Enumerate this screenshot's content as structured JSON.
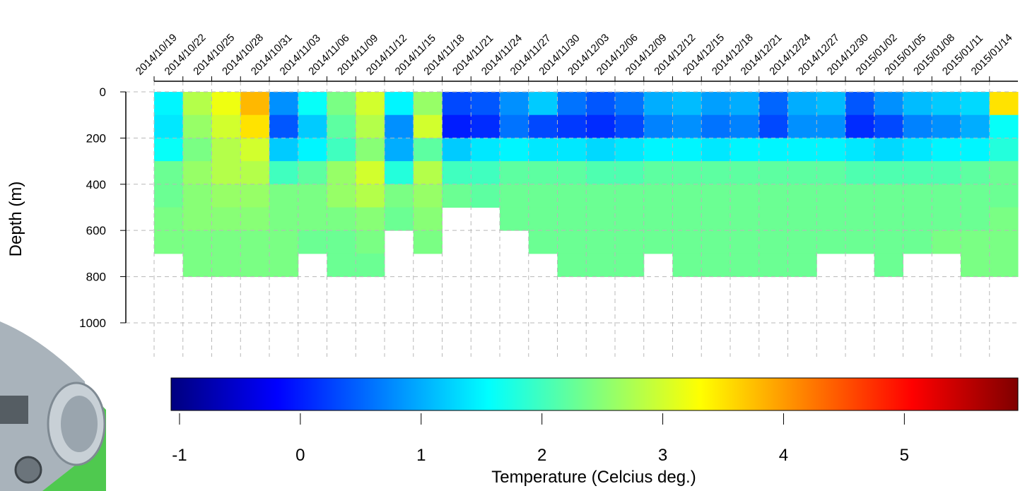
{
  "chart_data": {
    "type": "heatmap",
    "ylabel": "Depth (m)",
    "colorbar_label": "Temperature (Celcius deg.)",
    "x": [
      "2014/10/19",
      "2014/10/22",
      "2014/10/25",
      "2014/10/28",
      "2014/10/31",
      "2014/11/03",
      "2014/11/06",
      "2014/11/09",
      "2014/11/12",
      "2014/11/15",
      "2014/11/18",
      "2014/11/21",
      "2014/11/24",
      "2014/11/27",
      "2014/11/30",
      "2014/12/03",
      "2014/12/06",
      "2014/12/09",
      "2014/12/12",
      "2014/12/15",
      "2014/12/18",
      "2014/12/21",
      "2014/12/24",
      "2014/12/27",
      "2014/12/30",
      "2015/01/02",
      "2015/01/05",
      "2015/01/08",
      "2015/01/11",
      "2015/01/14"
    ],
    "y_edges": [
      0,
      100,
      200,
      300,
      400,
      500,
      600,
      700,
      800,
      900,
      1000,
      1100
    ],
    "z": [
      [
        1.5,
        1.4,
        1.6,
        2.3,
        2.3,
        2.4,
        2.4,
        null,
        null,
        null,
        null
      ],
      [
        2.8,
        2.6,
        2.4,
        2.6,
        2.5,
        2.5,
        2.4,
        2.4,
        null,
        null,
        null
      ],
      [
        3.2,
        3.0,
        2.8,
        2.8,
        2.6,
        2.5,
        2.4,
        2.4,
        null,
        null,
        null
      ],
      [
        3.8,
        3.5,
        3.0,
        2.8,
        2.6,
        2.5,
        2.4,
        2.4,
        null,
        null,
        null
      ],
      [
        0.8,
        0.4,
        1.2,
        2.0,
        2.4,
        2.4,
        2.4,
        2.4,
        null,
        null,
        null
      ],
      [
        1.6,
        1.2,
        1.5,
        2.2,
        2.4,
        2.4,
        2.3,
        null,
        null,
        null,
        null
      ],
      [
        2.4,
        2.2,
        2.0,
        2.6,
        2.6,
        2.4,
        2.3,
        2.3,
        null,
        null,
        null
      ],
      [
        3.0,
        2.8,
        2.5,
        3.0,
        2.8,
        2.5,
        2.4,
        2.3,
        null,
        null,
        null
      ],
      [
        1.5,
        0.8,
        1.0,
        1.8,
        2.4,
        2.3,
        null,
        null,
        null,
        null,
        null
      ],
      [
        2.6,
        3.0,
        2.2,
        2.8,
        2.6,
        2.5,
        2.4,
        null,
        null,
        null,
        null
      ],
      [
        0.3,
        0.0,
        1.2,
        2.0,
        2.3,
        null,
        null,
        null,
        null,
        null,
        null
      ],
      [
        0.4,
        0.1,
        1.4,
        2.0,
        2.2,
        null,
        null,
        null,
        null,
        null,
        null
      ],
      [
        0.8,
        0.6,
        1.5,
        2.2,
        2.3,
        2.3,
        null,
        null,
        null,
        null,
        null
      ],
      [
        1.2,
        0.3,
        1.4,
        2.2,
        2.3,
        2.3,
        2.3,
        null,
        null,
        null,
        null
      ],
      [
        0.6,
        0.2,
        1.4,
        2.2,
        2.3,
        2.3,
        2.3,
        2.3,
        null,
        null,
        null
      ],
      [
        0.4,
        0.1,
        1.3,
        2.1,
        2.3,
        2.3,
        2.3,
        2.3,
        null,
        null,
        null
      ],
      [
        0.6,
        0.3,
        1.4,
        2.1,
        2.3,
        2.3,
        2.3,
        2.3,
        null,
        null,
        null
      ],
      [
        1.0,
        0.7,
        1.5,
        2.2,
        2.3,
        2.3,
        2.3,
        null,
        null,
        null,
        null
      ],
      [
        1.1,
        0.8,
        1.5,
        2.2,
        2.3,
        2.3,
        2.3,
        2.3,
        null,
        null,
        null
      ],
      [
        0.9,
        0.6,
        1.4,
        2.2,
        2.3,
        2.3,
        2.3,
        2.3,
        null,
        null,
        null
      ],
      [
        1.0,
        0.7,
        1.5,
        2.2,
        2.3,
        2.3,
        2.3,
        2.3,
        null,
        null,
        null
      ],
      [
        0.5,
        0.3,
        1.5,
        2.2,
        2.3,
        2.3,
        2.3,
        2.3,
        null,
        null,
        null
      ],
      [
        1.0,
        0.8,
        1.5,
        2.2,
        2.3,
        2.3,
        2.3,
        2.3,
        null,
        null,
        null
      ],
      [
        1.1,
        0.8,
        1.5,
        2.2,
        2.3,
        2.3,
        2.3,
        null,
        null,
        null,
        null
      ],
      [
        0.4,
        0.1,
        1.4,
        2.1,
        2.3,
        2.3,
        2.3,
        null,
        null,
        null,
        null
      ],
      [
        0.8,
        0.3,
        1.3,
        2.1,
        2.3,
        2.3,
        2.3,
        2.3,
        null,
        null,
        null
      ],
      [
        1.1,
        0.7,
        1.4,
        2.1,
        2.3,
        2.3,
        2.3,
        null,
        null,
        null,
        null
      ],
      [
        1.2,
        0.8,
        1.5,
        2.1,
        2.3,
        2.3,
        2.4,
        null,
        null,
        null,
        null
      ],
      [
        1.3,
        1.0,
        1.5,
        2.2,
        2.3,
        2.3,
        2.4,
        2.4,
        null,
        null,
        null
      ],
      [
        3.5,
        1.6,
        1.8,
        2.3,
        2.3,
        2.4,
        2.4,
        2.4,
        null,
        null,
        null
      ]
    ],
    "ylim": [
      -46,
      1147
    ],
    "y_inverted": true,
    "yticks": [
      0,
      200,
      400,
      600,
      800,
      1000
    ],
    "grid": true,
    "clim": [
      -1.07,
      5.94
    ],
    "cticks": [
      -1,
      0,
      1,
      2,
      3,
      4,
      5
    ],
    "colormap": [
      "#00007f",
      "#0000ff",
      "#007fff",
      "#00ffff",
      "#7fff7f",
      "#ffff00",
      "#ff7f00",
      "#ff0000",
      "#7f0000"
    ]
  }
}
